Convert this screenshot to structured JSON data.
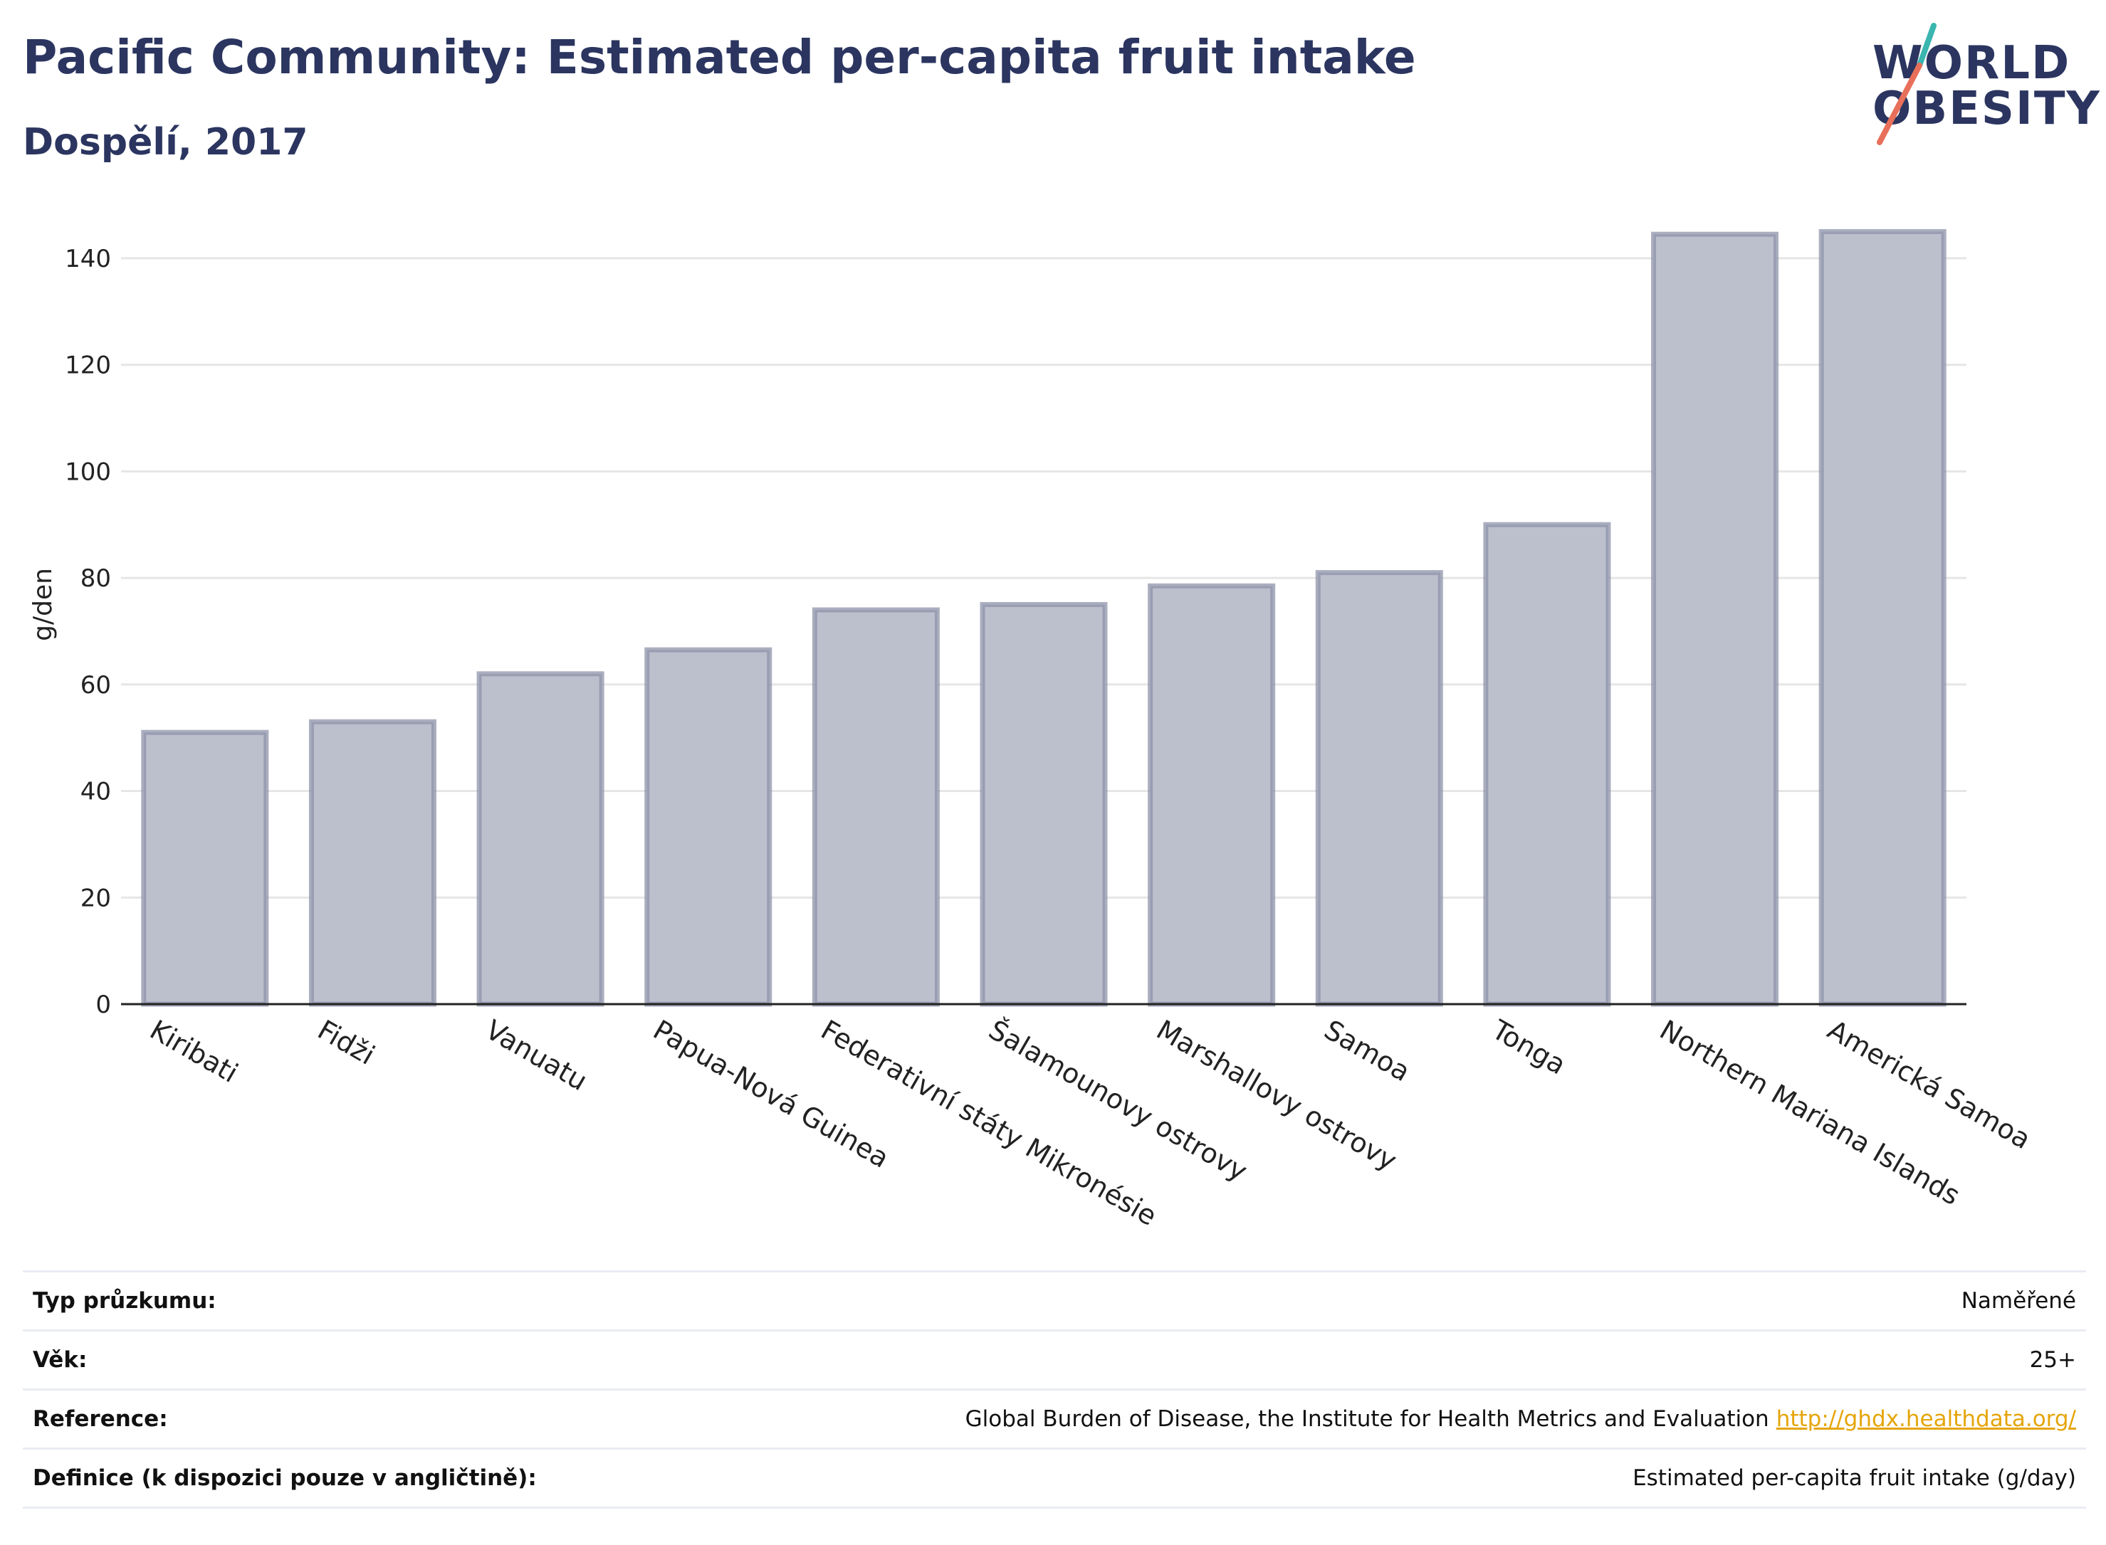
{
  "header": {
    "title": "Pacific Community: Estimated per-capita fruit intake",
    "subtitle": "Dospělí, 2017"
  },
  "logo": {
    "line1": "WORLD",
    "line2": "OBESITY",
    "colors": {
      "text": "#2b3560",
      "teal": "#3ab5b0",
      "coral": "#e8705a"
    }
  },
  "chart_data": {
    "type": "bar",
    "categories": [
      "Kiribati",
      "Fidži",
      "Vanuatu",
      "Papua-Nová Guinea",
      "Federativní státy Mikronésie",
      "Šalamounovy ostrovy",
      "Marshallovy ostrovy",
      "Samoa",
      "Tonga",
      "Northern Mariana Islands",
      "Americká Samoa"
    ],
    "values": [
      51,
      53,
      62,
      66.5,
      74,
      75,
      78.5,
      81,
      90,
      144.5,
      145
    ],
    "ylabel": "g/den",
    "xlabel": "",
    "ylim": [
      0,
      150
    ],
    "yticks": [
      0,
      20,
      40,
      60,
      80,
      100,
      120,
      140
    ],
    "grid": true,
    "colors": {
      "bar_fill": "#bcc0cd",
      "bar_stroke": "#8d93a9",
      "grid": "#e6e6e6",
      "axis": "#222222"
    }
  },
  "meta": {
    "rows": [
      {
        "label": "Typ průzkumu:",
        "value": "Naměřené"
      },
      {
        "label": "Věk:",
        "value": "25+"
      },
      {
        "label": "Reference:",
        "value": "Global Burden of Disease, the Institute for Health Metrics and Evaluation",
        "link": "http://ghdx.healthdata.org/"
      },
      {
        "label": "Definice (k dispozici pouze v angličtině):",
        "value": "Estimated per-capita fruit intake (g/day)"
      }
    ]
  }
}
